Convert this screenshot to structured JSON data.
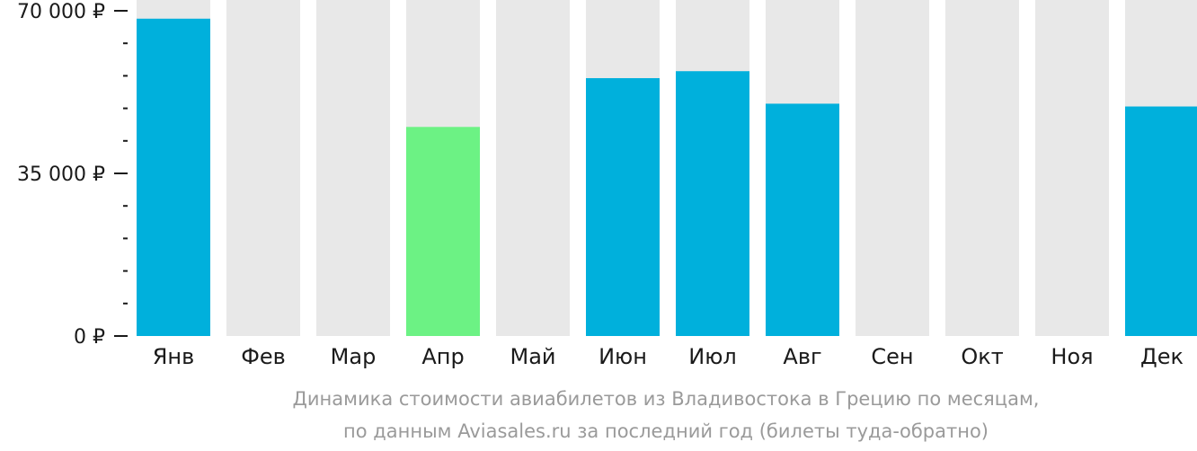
{
  "chart_data": {
    "type": "bar",
    "categories": [
      "Янв",
      "Фев",
      "Мар",
      "Апр",
      "Май",
      "Июн",
      "Июл",
      "Авг",
      "Сен",
      "Окт",
      "Ноя",
      "Дек"
    ],
    "values": [
      68300,
      null,
      null,
      45000,
      null,
      55500,
      57000,
      50000,
      null,
      null,
      null,
      49400
    ],
    "highlight_index": 3,
    "ylim": [
      0,
      70000
    ],
    "y_ticks": [
      {
        "value": 0,
        "label": "0 ₽"
      },
      {
        "value": 35000,
        "label": "35 000 ₽"
      },
      {
        "value": 70000,
        "label": "70 000 ₽"
      }
    ],
    "minor_tick_step": 7000,
    "caption_line1": "Динамика стоимости авиабилетов из Владивостока в Грецию по месяцам,",
    "caption_line2": "по данным Aviasales.ru за последний год (билеты туда-обратно)",
    "colors": {
      "bar": "#00b0dc",
      "highlight": "#6cf284",
      "background_bar": "#e8e8e8",
      "axis": "#1a1a1a",
      "caption": "#9a9a9a"
    }
  }
}
